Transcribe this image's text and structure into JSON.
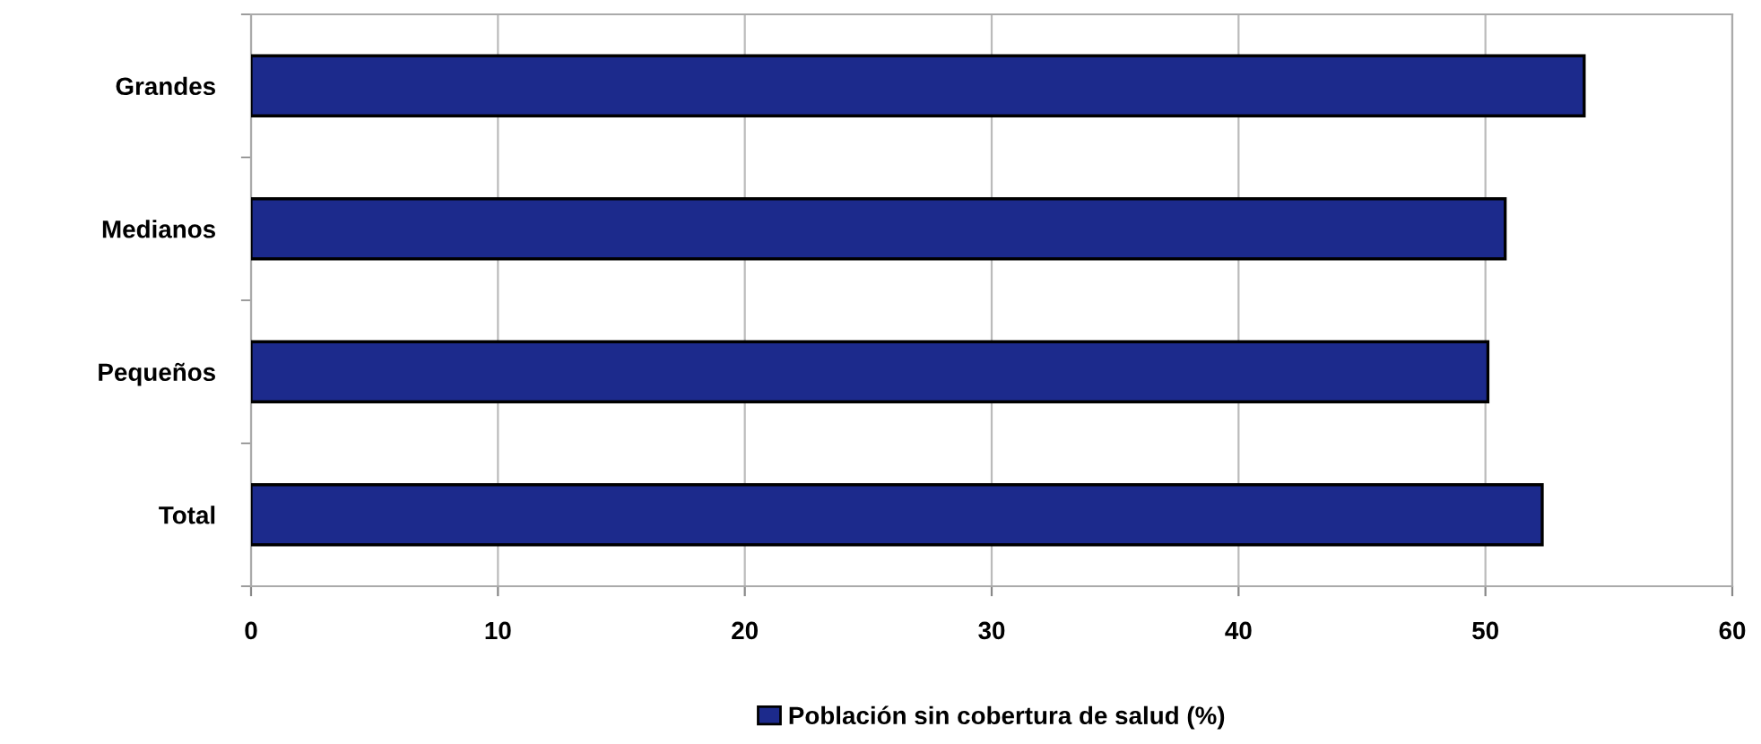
{
  "chart_data": {
    "type": "bar",
    "orientation": "horizontal",
    "categories": [
      "Grandes",
      "Medianos",
      "Pequeños",
      "Total"
    ],
    "series": [
      {
        "name": "Población sin cobertura de salud (%)",
        "color": "#1c2a8c",
        "values": [
          54.0,
          50.8,
          50.1,
          52.3
        ]
      }
    ],
    "xlim": [
      0,
      60
    ],
    "xticks": [
      0,
      10,
      20,
      30,
      40,
      50,
      60
    ],
    "grid": "x",
    "legend": "bottom"
  }
}
